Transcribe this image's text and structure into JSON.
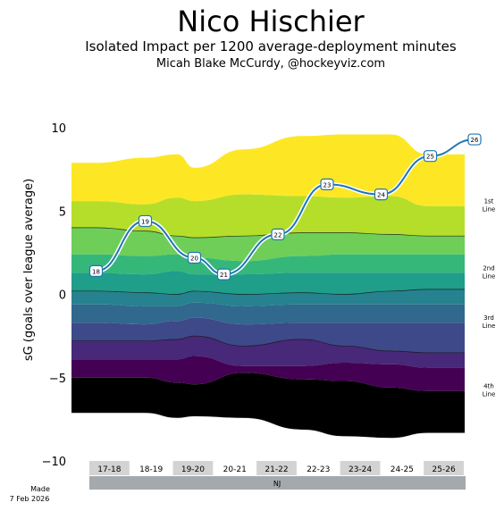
{
  "header": {
    "title": "Nico Hischier",
    "subtitle": "Isolated Impact per 1200 average-deployment minutes",
    "byline": "Micah Blake McCurdy, @hockeyviz.com"
  },
  "footer": {
    "made_label": "Made",
    "made_date": "7 Feb 2026"
  },
  "chart_data": {
    "type": "area",
    "ylabel": "sG (goals over league average)",
    "ylim": [
      -10,
      10
    ],
    "yticks": [
      10,
      5,
      0,
      -5,
      -10
    ],
    "grid": false,
    "seasons": [
      "17-18",
      "18-19",
      "19-20",
      "20-21",
      "21-22",
      "22-23",
      "23-24",
      "24-25",
      "25-26"
    ],
    "team_label": "NJ",
    "line_labels": [
      {
        "lines": [
          "1st",
          "Line"
        ],
        "y": 5.3
      },
      {
        "lines": [
          "2nd",
          "Line"
        ],
        "y": 1.3
      },
      {
        "lines": [
          "3rd",
          "Line"
        ],
        "y": -1.7
      },
      {
        "lines": [
          "4th",
          "Line"
        ],
        "y": -5.8
      }
    ],
    "band_colors": [
      "#fde725",
      "#b5de2b",
      "#6ece58",
      "#35b779",
      "#1f9e89",
      "#26828e",
      "#31688e",
      "#3e4989",
      "#482878",
      "#440154"
    ],
    "band_x": [
      0,
      0.5,
      1.5,
      2.15,
      2.5,
      3.5,
      4.7,
      5.55,
      6.5,
      7.25,
      8
    ],
    "band_boundaries": [
      [
        7.9,
        7.9,
        8.2,
        8.4,
        7.6,
        8.7,
        9.5,
        9.6,
        9.6,
        8.4,
        8.4
      ],
      [
        5.6,
        5.6,
        5.4,
        5.8,
        5.6,
        6.0,
        5.9,
        5.8,
        5.9,
        5.3,
        5.3
      ],
      [
        4.0,
        4.0,
        3.8,
        3.5,
        3.4,
        3.5,
        3.7,
        3.7,
        3.6,
        3.5,
        3.5
      ],
      [
        2.4,
        2.4,
        2.3,
        2.4,
        2.2,
        2.0,
        2.3,
        2.4,
        2.4,
        2.4,
        2.4
      ],
      [
        1.3,
        1.3,
        1.2,
        1.4,
        1.2,
        1.2,
        1.3,
        1.3,
        1.3,
        1.3,
        1.3
      ],
      [
        0.2,
        0.2,
        0.1,
        0.0,
        0.2,
        0.0,
        0.1,
        0.0,
        0.2,
        0.3,
        0.3
      ],
      [
        -0.6,
        -0.6,
        -0.7,
        -0.7,
        -0.5,
        -0.7,
        -0.6,
        -0.6,
        -0.6,
        -0.6,
        -0.6
      ],
      [
        -1.7,
        -1.7,
        -1.8,
        -1.6,
        -1.4,
        -1.8,
        -1.7,
        -1.7,
        -1.7,
        -1.7,
        -1.7
      ],
      [
        -2.8,
        -2.8,
        -2.8,
        -2.7,
        -2.5,
        -3.1,
        -2.7,
        -3.1,
        -3.4,
        -3.5,
        -3.5
      ],
      [
        -3.9,
        -3.9,
        -3.9,
        -3.9,
        -3.7,
        -4.3,
        -4.3,
        -4.1,
        -4.2,
        -4.4,
        -4.4
      ],
      [
        -5.0,
        -5.0,
        -5.0,
        -5.3,
        -5.4,
        -4.7,
        -5.1,
        -5.2,
        -5.6,
        -5.8,
        -5.8
      ],
      [
        -7.1,
        -7.1,
        -7.1,
        -7.4,
        -7.3,
        -7.4,
        -8.1,
        -8.5,
        -8.6,
        -8.3,
        -8.3
      ]
    ],
    "impact_series": [
      {
        "label": "18",
        "x": 0.5,
        "y": 1.4
      },
      {
        "label": "19",
        "x": 1.5,
        "y": 4.4
      },
      {
        "label": "20",
        "x": 2.5,
        "y": 2.2
      },
      {
        "label": "21",
        "x": 3.1,
        "y": 1.2
      },
      {
        "label": "22",
        "x": 4.2,
        "y": 3.6
      },
      {
        "label": "23",
        "x": 5.2,
        "y": 6.6
      },
      {
        "label": "24",
        "x": 6.3,
        "y": 6.0
      },
      {
        "label": "25",
        "x": 7.3,
        "y": 8.3
      },
      {
        "label": "26",
        "x": 8.2,
        "y": 9.3
      }
    ],
    "line_color": "#1f77b4"
  }
}
